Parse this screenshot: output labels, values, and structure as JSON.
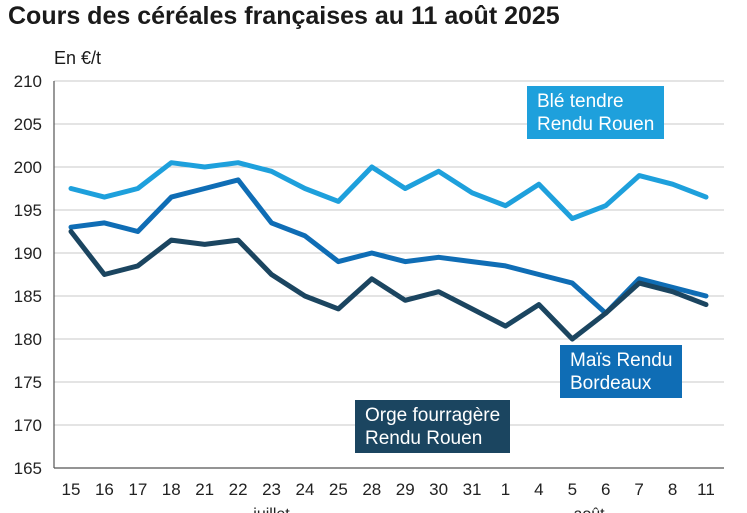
{
  "chart_data": {
    "type": "line",
    "title": "Cours des céréales françaises au 11 août 2025",
    "ylabel": "En €/t",
    "xlabel": "",
    "ylim": [
      165,
      210
    ],
    "yticks": [
      165,
      170,
      175,
      180,
      185,
      190,
      195,
      200,
      205,
      210
    ],
    "categories": [
      "15",
      "16",
      "17",
      "18",
      "21",
      "22",
      "23",
      "24",
      "25",
      "28",
      "29",
      "30",
      "31",
      "1",
      "4",
      "5",
      "6",
      "7",
      "8",
      "11"
    ],
    "month_labels": [
      {
        "label": "juillet",
        "index": 6
      },
      {
        "label": "août",
        "index": 15.5
      }
    ],
    "grid": true,
    "series": [
      {
        "name": "Blé tendre Rendu Rouen",
        "label_lines": [
          "Blé tendre",
          "Rendu Rouen"
        ],
        "color": "#1ea0dc",
        "values": [
          197.5,
          196.5,
          197.5,
          200.5,
          200.0,
          200.5,
          199.5,
          197.5,
          196.0,
          200.0,
          197.5,
          199.5,
          197.0,
          195.5,
          198.0,
          194.0,
          195.5,
          199.0,
          198.0,
          196.5
        ]
      },
      {
        "name": "Maïs Rendu Bordeaux",
        "label_lines": [
          "Maïs Rendu",
          "Bordeaux"
        ],
        "color": "#0f6db5",
        "values": [
          193.0,
          193.5,
          192.5,
          196.5,
          197.5,
          198.5,
          193.5,
          192.0,
          189.0,
          190.0,
          189.0,
          189.5,
          189.0,
          188.5,
          187.5,
          186.5,
          183.0,
          187.0,
          186.0,
          185.0
        ]
      },
      {
        "name": "Orge fourragère Rendu Rouen",
        "label_lines": [
          "Orge fourragère",
          "Rendu Rouen"
        ],
        "color": "#1b4560",
        "values": [
          192.5,
          187.5,
          188.5,
          191.5,
          191.0,
          191.5,
          187.5,
          185.0,
          183.5,
          187.0,
          184.5,
          185.5,
          183.5,
          181.5,
          184.0,
          180.0,
          183.0,
          186.5,
          185.5,
          184.0
        ]
      }
    ]
  }
}
